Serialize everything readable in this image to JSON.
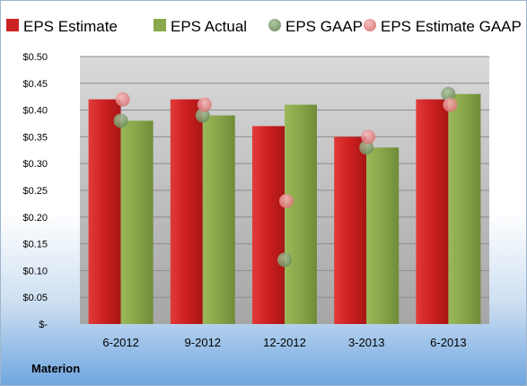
{
  "company": "Materion",
  "chart_data": {
    "type": "bar",
    "categories": [
      "6-2012",
      "9-2012",
      "12-2012",
      "3-2013",
      "6-2013"
    ],
    "series": [
      {
        "name": "EPS Estimate",
        "kind": "bar",
        "color": "#cc2222",
        "values": [
          0.42,
          0.42,
          0.37,
          0.35,
          0.42
        ]
      },
      {
        "name": "EPS Actual",
        "kind": "bar",
        "color": "#8aa84c",
        "values": [
          0.38,
          0.39,
          0.41,
          0.33,
          0.43
        ]
      },
      {
        "name": "EPS GAAP",
        "kind": "marker",
        "color": "#7f9c6a",
        "values": [
          0.38,
          0.39,
          0.12,
          0.33,
          0.43
        ]
      },
      {
        "name": "EPS Estimate GAAP",
        "kind": "marker",
        "color": "#e88a8a",
        "values": [
          0.42,
          0.41,
          0.23,
          0.35,
          0.41
        ]
      }
    ],
    "ylim": [
      0,
      0.5
    ],
    "yticks": [
      {
        "value": 0,
        "label": "$-"
      },
      {
        "value": 0.05,
        "label": "$0.05"
      },
      {
        "value": 0.1,
        "label": "$0.10"
      },
      {
        "value": 0.15,
        "label": "$0.15"
      },
      {
        "value": 0.2,
        "label": "$0.20"
      },
      {
        "value": 0.25,
        "label": "$0.25"
      },
      {
        "value": 0.3,
        "label": "$0.30"
      },
      {
        "value": 0.35,
        "label": "$0.35"
      },
      {
        "value": 0.4,
        "label": "$0.40"
      },
      {
        "value": 0.45,
        "label": "$0.45"
      },
      {
        "value": 0.5,
        "label": "$0.50"
      }
    ],
    "grid": true,
    "legend_position": "top"
  }
}
